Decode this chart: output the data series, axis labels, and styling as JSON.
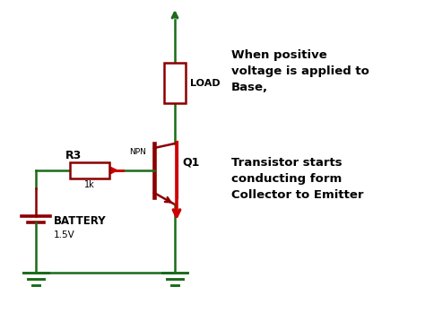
{
  "bg_color": "#ffffff",
  "dark_green": "#1a6b1a",
  "red": "#cc0000",
  "dark_red": "#8b0000",
  "line_width": 1.8,
  "text_color": "#000000",
  "annotation_text1": "When positive\nvoltage is applied to\nBase,",
  "annotation_text2": "Transistor starts\nconducting form\nCollector to Emitter",
  "label_load": "LOAD",
  "label_q1": "Q1",
  "label_r3": "R3",
  "label_npn": "NPN",
  "label_1k": "1k",
  "label_battery": "BATTERY",
  "label_15v": "1.5V"
}
